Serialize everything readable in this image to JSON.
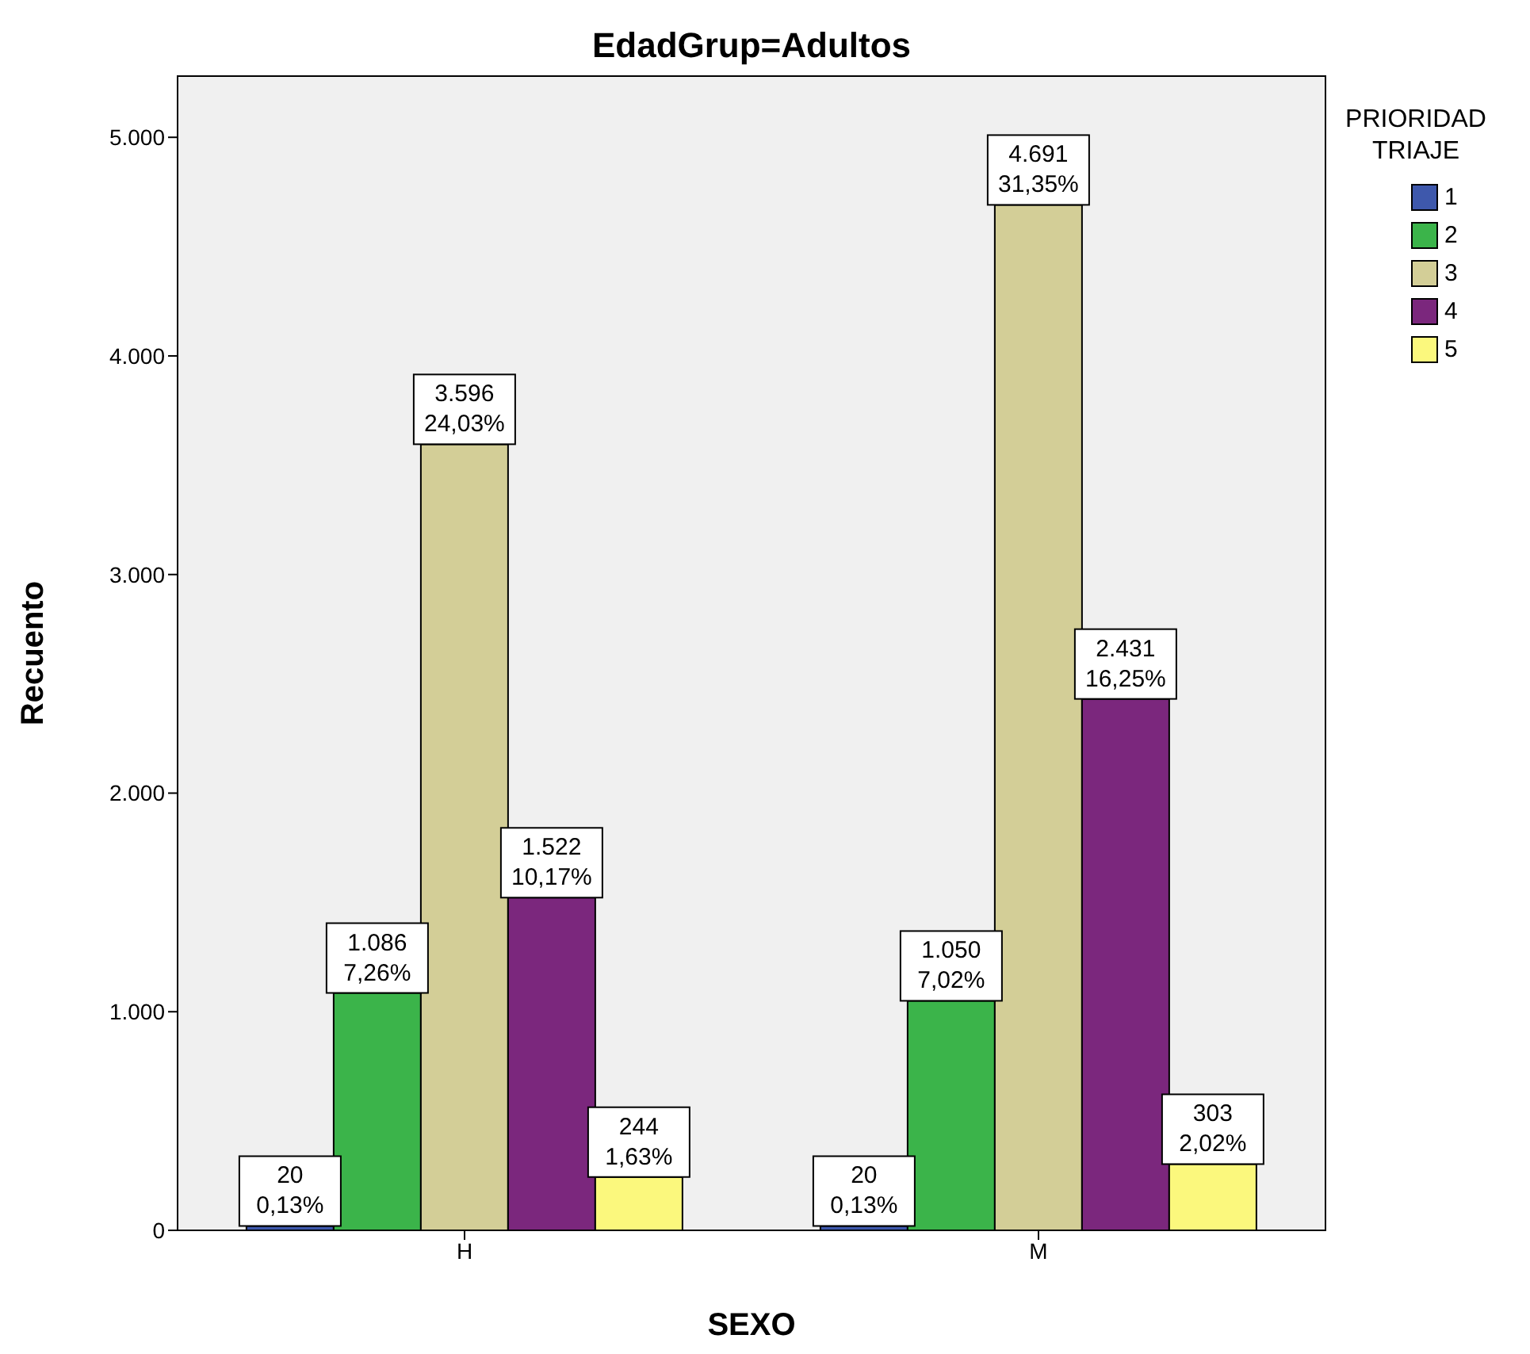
{
  "chart_data": {
    "type": "bar",
    "title": "EdadGrup=Adultos",
    "xlabel": "SEXO",
    "ylabel": "Recuento",
    "legend_title": "PRIORIDAD TRIAJE",
    "categories": [
      "H",
      "M"
    ],
    "series": [
      {
        "name": "1",
        "color": "#3e58ac",
        "values": [
          20,
          20
        ],
        "value_labels": [
          "20\n0,13%",
          "20\n0,13%"
        ]
      },
      {
        "name": "2",
        "color": "#3bb44a",
        "values": [
          1086,
          1050
        ],
        "value_labels": [
          "1.086\n7,26%",
          "1.050\n7,02%"
        ]
      },
      {
        "name": "3",
        "color": "#d3ce97",
        "values": [
          3596,
          4691
        ],
        "value_labels": [
          "3.596\n24,03%",
          "4.691\n31,35%"
        ]
      },
      {
        "name": "4",
        "color": "#7b277d",
        "values": [
          1522,
          2431
        ],
        "value_labels": [
          "1.522\n10,17%",
          "2.431\n16,25%"
        ]
      },
      {
        "name": "5",
        "color": "#fbf87d",
        "values": [
          244,
          303
        ],
        "value_labels": [
          "244\n1,63%",
          "303\n2,02%"
        ]
      }
    ],
    "ylim": [
      0,
      5280
    ],
    "yticks": [
      {
        "value": 0,
        "label": "0"
      },
      {
        "value": 1000,
        "label": "1.000"
      },
      {
        "value": 2000,
        "label": "2.000"
      },
      {
        "value": 3000,
        "label": "3.000"
      },
      {
        "value": 4000,
        "label": "4.000"
      },
      {
        "value": 5000,
        "label": "5.000"
      }
    ],
    "legend": "top right"
  }
}
